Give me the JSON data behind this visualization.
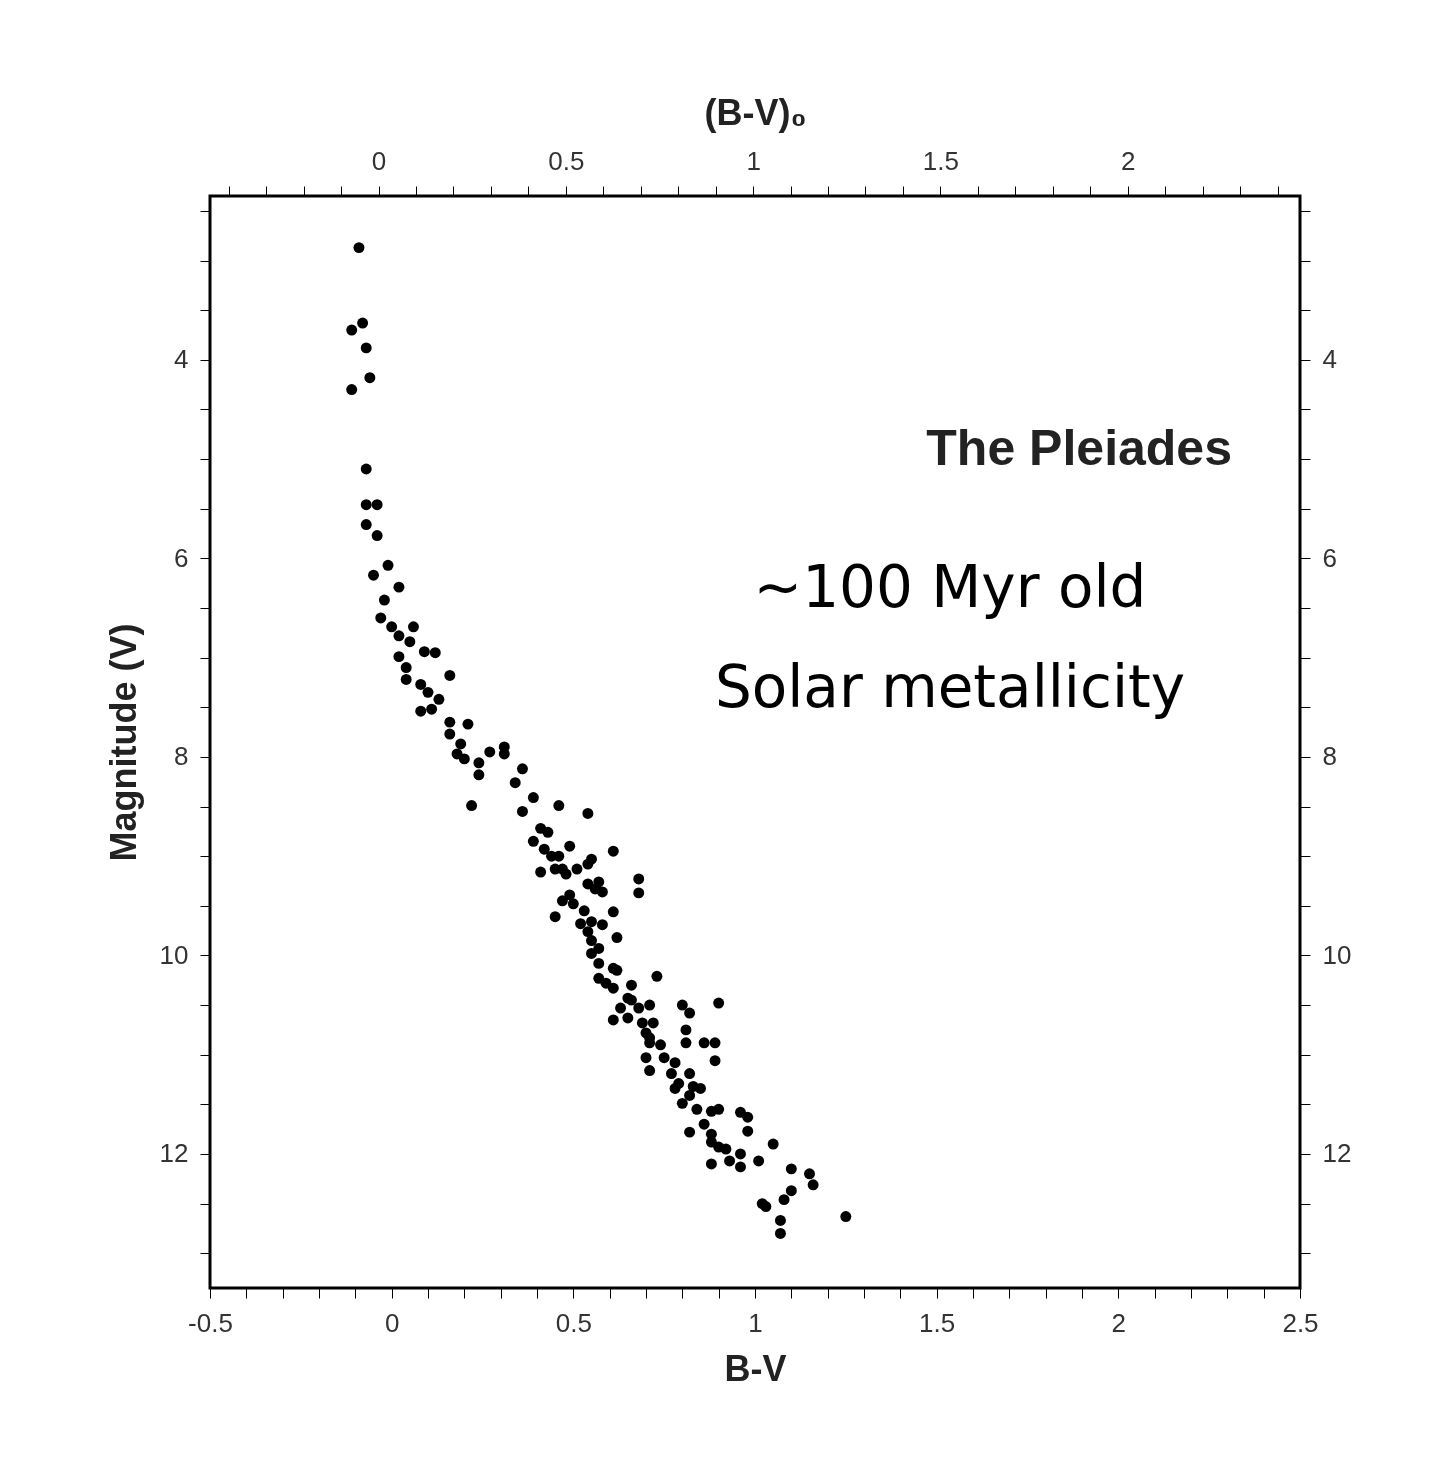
{
  "chart_data": {
    "type": "scatter",
    "xlabel": "B-V",
    "ylabel": "Magnitude (V)",
    "x2label": "(B-V)₀",
    "annotations": [
      "The Pleiades",
      "~100 Myr old",
      "Solar metallicity"
    ],
    "marker": "circle",
    "grid": false,
    "xlim": [
      -0.5,
      2.5
    ],
    "xticks": [
      -0.5,
      {
        "value": -0.4,
        "label": null
      },
      {
        "value": -0.3,
        "label": null
      },
      {
        "value": -0.2,
        "label": null
      },
      {
        "value": -0.1,
        "label": null
      },
      0,
      {
        "value": 0.1,
        "label": null
      },
      {
        "value": 0.2,
        "label": null
      },
      {
        "value": 0.3,
        "label": null
      },
      {
        "value": 0.4,
        "label": null
      },
      0.5,
      {
        "value": 0.6,
        "label": null
      },
      {
        "value": 0.7,
        "label": null
      },
      {
        "value": 0.8,
        "label": null
      },
      {
        "value": 0.9,
        "label": null
      },
      1,
      {
        "value": 1.1,
        "label": null
      },
      {
        "value": 1.2,
        "label": null
      },
      {
        "value": 1.3,
        "label": null
      },
      {
        "value": 1.4,
        "label": null
      },
      1.5,
      {
        "value": 1.6,
        "label": null
      },
      {
        "value": 1.7,
        "label": null
      },
      {
        "value": 1.8,
        "label": null
      },
      {
        "value": 1.9,
        "label": null
      },
      2,
      {
        "value": 2.1,
        "label": null
      },
      {
        "value": 2.2,
        "label": null
      },
      {
        "value": 2.3,
        "label": null
      },
      {
        "value": 2.4,
        "label": null
      },
      2.5
    ],
    "x2lim": [
      -0.45,
      2.46
    ],
    "x2ticks": [
      {
        "value": -0.4,
        "label": null
      },
      {
        "value": -0.3,
        "label": null
      },
      {
        "value": -0.2,
        "label": null
      },
      {
        "value": -0.1,
        "label": null
      },
      0,
      {
        "value": 0.1,
        "label": null
      },
      {
        "value": 0.2,
        "label": null
      },
      {
        "value": 0.3,
        "label": null
      },
      {
        "value": 0.4,
        "label": null
      },
      0.5,
      {
        "value": 0.6,
        "label": null
      },
      {
        "value": 0.7,
        "label": null
      },
      {
        "value": 0.8,
        "label": null
      },
      {
        "value": 0.9,
        "label": null
      },
      1,
      {
        "value": 1.1,
        "label": null
      },
      {
        "value": 1.2,
        "label": null
      },
      {
        "value": 1.3,
        "label": null
      },
      {
        "value": 1.4,
        "label": null
      },
      1.5,
      {
        "value": 1.6,
        "label": null
      },
      {
        "value": 1.7,
        "label": null
      },
      {
        "value": 1.8,
        "label": null
      },
      {
        "value": 1.9,
        "label": null
      },
      2,
      {
        "value": 2.1,
        "label": null
      },
      {
        "value": 2.2,
        "label": null
      },
      {
        "value": 2.3,
        "label": null
      },
      {
        "value": 2.4,
        "label": null
      }
    ],
    "ylim": [
      13.35,
      2.35
    ],
    "yticks": [
      {
        "value": 2.5,
        "label": null
      },
      {
        "value": 3,
        "label": null
      },
      {
        "value": 3.5,
        "label": null
      },
      4,
      {
        "value": 4.5,
        "label": null
      },
      {
        "value": 5,
        "label": null
      },
      {
        "value": 5.5,
        "label": null
      },
      6,
      {
        "value": 6.5,
        "label": null
      },
      {
        "value": 7,
        "label": null
      },
      {
        "value": 7.5,
        "label": null
      },
      8,
      {
        "value": 8.5,
        "label": null
      },
      {
        "value": 9,
        "label": null
      },
      {
        "value": 9.5,
        "label": null
      },
      10,
      {
        "value": 10.5,
        "label": null
      },
      {
        "value": 11,
        "label": null
      },
      {
        "value": 11.5,
        "label": null
      },
      12,
      {
        "value": 12.5,
        "label": null
      },
      {
        "value": 13,
        "label": null
      }
    ],
    "y2lim": [
      13.35,
      2.35
    ],
    "y2ticks": [
      {
        "value": 2.5,
        "label": null
      },
      {
        "value": 3,
        "label": null
      },
      {
        "value": 3.5,
        "label": null
      },
      4,
      {
        "value": 4.5,
        "label": null
      },
      {
        "value": 5,
        "label": null
      },
      {
        "value": 5.5,
        "label": null
      },
      6,
      {
        "value": 6.5,
        "label": null
      },
      {
        "value": 7,
        "label": null
      },
      {
        "value": 7.5,
        "label": null
      },
      8,
      {
        "value": 8.5,
        "label": null
      },
      {
        "value": 9,
        "label": null
      },
      {
        "value": 9.5,
        "label": null
      },
      10,
      {
        "value": 10.5,
        "label": null
      },
      {
        "value": 11,
        "label": null
      },
      {
        "value": 11.5,
        "label": null
      },
      12,
      {
        "value": 12.5,
        "label": null
      },
      {
        "value": 13,
        "label": null
      }
    ],
    "series": [
      {
        "color": "#000000",
        "x": [
          -0.09,
          -0.08,
          -0.11,
          -0.07,
          -0.06,
          -0.11,
          -0.07,
          -0.07,
          -0.04,
          -0.07,
          -0.04,
          -0.05,
          -0.01,
          0.02,
          -0.02,
          -0.03,
          0.0,
          0.06,
          0.02,
          0.05,
          0.09,
          0.12,
          0.02,
          0.04,
          0.04,
          0.16,
          0.08,
          0.1,
          0.13,
          0.08,
          0.11,
          0.16,
          0.21,
          0.16,
          0.19,
          0.18,
          0.24,
          0.2,
          0.27,
          0.31,
          0.36,
          0.22,
          0.34,
          0.36,
          0.39,
          0.41,
          0.43,
          0.39,
          0.42,
          0.46,
          0.49,
          0.47,
          0.41,
          0.54,
          0.61,
          0.56,
          0.46,
          0.68,
          0.68,
          0.49,
          0.31,
          0.24,
          0.55,
          0.44,
          0.45,
          0.48,
          0.54,
          0.51,
          0.54,
          0.57,
          0.58,
          0.47,
          0.5,
          0.53,
          0.61,
          0.45,
          0.52,
          0.55,
          0.58,
          0.62,
          0.54,
          0.55,
          0.55,
          0.57,
          0.57,
          0.57,
          0.61,
          0.62,
          0.61,
          0.66,
          0.59,
          0.65,
          0.66,
          0.63,
          0.68,
          0.71,
          0.73,
          0.61,
          0.65,
          0.69,
          0.7,
          0.71,
          0.74,
          0.8,
          0.82,
          0.9,
          0.81,
          0.81,
          0.86,
          0.89,
          0.72,
          0.89,
          0.71,
          0.7,
          0.75,
          0.78,
          0.71,
          0.77,
          0.82,
          0.78,
          0.82,
          0.85,
          0.84,
          0.88,
          0.9,
          0.96,
          0.98,
          0.98,
          0.86,
          0.88,
          0.88,
          1.05,
          0.92,
          0.96,
          0.79,
          0.83,
          0.8,
          0.82,
          0.9,
          0.88,
          0.93,
          0.96,
          1.01,
          1.1,
          1.15,
          1.16,
          1.1,
          1.02,
          1.03,
          1.08,
          1.07,
          1.07,
          1.25
        ],
        "values": [
          2.87,
          3.63,
          3.7,
          3.88,
          4.18,
          4.3,
          5.1,
          5.46,
          5.46,
          5.66,
          5.77,
          6.17,
          6.07,
          6.29,
          6.42,
          6.6,
          6.69,
          6.69,
          6.78,
          6.84,
          6.94,
          6.95,
          6.99,
          7.1,
          7.22,
          7.18,
          7.27,
          7.35,
          7.42,
          7.54,
          7.52,
          7.65,
          7.67,
          7.77,
          7.87,
          7.97,
          8.06,
          8.02,
          7.95,
          7.9,
          8.12,
          8.49,
          8.26,
          8.55,
          8.41,
          8.72,
          8.76,
          8.85,
          8.93,
          9.0,
          8.9,
          9.13,
          9.16,
          8.57,
          8.95,
          9.33,
          8.49,
          9.37,
          9.23,
          9.39,
          7.97,
          8.18,
          9.03,
          9.0,
          9.13,
          9.18,
          9.08,
          9.13,
          9.28,
          9.26,
          9.36,
          9.45,
          9.48,
          9.55,
          9.56,
          9.61,
          9.68,
          9.66,
          9.69,
          9.82,
          9.76,
          9.85,
          9.98,
          9.93,
          10.08,
          10.23,
          10.13,
          10.15,
          10.33,
          10.3,
          10.28,
          10.43,
          10.45,
          10.53,
          10.53,
          10.5,
          10.21,
          10.65,
          10.63,
          10.68,
          10.78,
          10.83,
          10.9,
          10.5,
          10.58,
          10.48,
          10.75,
          10.88,
          10.88,
          10.88,
          10.68,
          11.06,
          10.88,
          11.03,
          11.03,
          11.08,
          11.16,
          11.19,
          11.19,
          11.34,
          11.41,
          11.34,
          11.55,
          11.57,
          11.55,
          11.58,
          11.63,
          11.77,
          11.7,
          11.8,
          11.88,
          11.9,
          11.95,
          12.0,
          11.29,
          11.32,
          11.49,
          11.78,
          11.93,
          12.1,
          12.07,
          12.13,
          12.07,
          12.15,
          12.2,
          12.31,
          12.37,
          12.5,
          12.53,
          12.46,
          12.67,
          12.8,
          12.63
        ]
      }
    ]
  }
}
